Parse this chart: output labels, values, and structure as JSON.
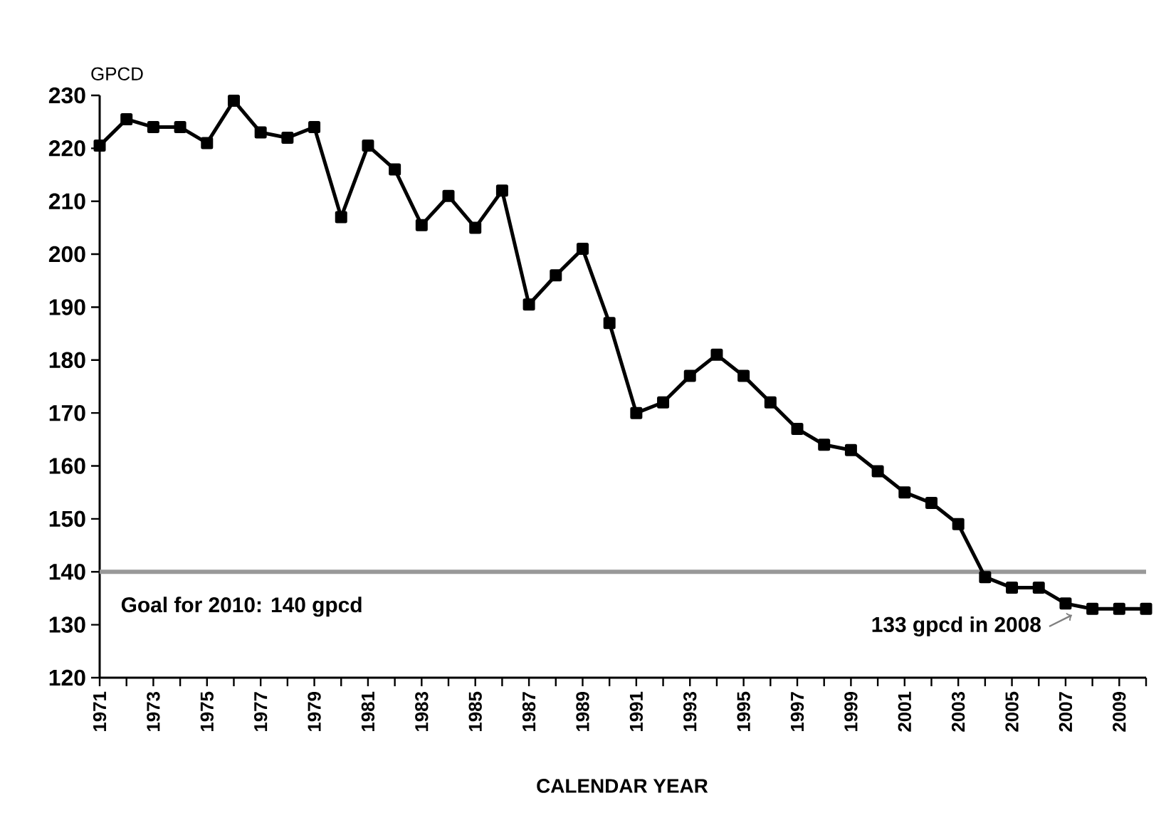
{
  "chart_data": {
    "type": "line",
    "ylabel": "GPCD",
    "xlabel": "CALENDAR YEAR",
    "categories": [
      "1971",
      null,
      "1973",
      null,
      "1975",
      null,
      "1977",
      null,
      "1979",
      null,
      "1981",
      null,
      "1983",
      null,
      "1985",
      null,
      "1987",
      null,
      "1989",
      null,
      "1991",
      null,
      "1993",
      null,
      "1995",
      null,
      "1997",
      null,
      "1999",
      null,
      "2001",
      null,
      "2003",
      null,
      "2005",
      null,
      "2007",
      null,
      "2009",
      null
    ],
    "series": [
      {
        "color": "#000000",
        "values": [
          220.5,
          225.5,
          224,
          224,
          221,
          229,
          223,
          222,
          224,
          207,
          220.5,
          216,
          205.5,
          211,
          205,
          212,
          190.5,
          196,
          201,
          187,
          170,
          172,
          177,
          181,
          177,
          172,
          167,
          164,
          163,
          159,
          155,
          153,
          149,
          139,
          137,
          137,
          134,
          133,
          133,
          133
        ]
      }
    ],
    "ylim": [
      120,
      230
    ],
    "yticks": [
      120,
      130,
      140,
      150,
      160,
      170,
      180,
      190,
      200,
      210,
      220,
      230
    ],
    "marker": "square",
    "line_style": "solid",
    "grid": false,
    "ref_lines": [
      {
        "axis": "y",
        "value": 140,
        "label": "Goal for 2010: 140 gpcd",
        "color": "#999999"
      }
    ],
    "annotations": [
      "133 gpcd in 2008"
    ]
  }
}
